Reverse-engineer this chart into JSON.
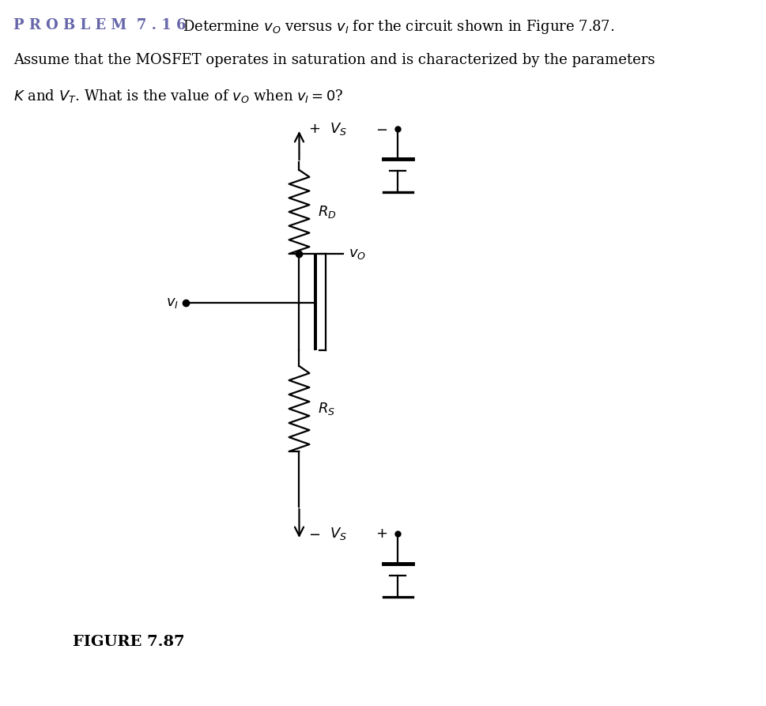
{
  "background_color": "#ffffff",
  "line_color": "#000000",
  "problem_label": "P R O B L E M  7 . 1 6",
  "problem_label_color": "#6666aa",
  "desc_line1": "Determine $v_O$ versus $v_I$ for the circuit shown in Figure 7.87.",
  "desc_line2": "Assume that the MOSFET operates in saturation and is characterized by the parameters",
  "desc_line3": "$K$ and $V_T$. What is the value of $v_O$ when $v_I = 0$?",
  "figure_label": "FIGURE 7.87",
  "font_size_header": 13,
  "font_size_circuit": 13
}
